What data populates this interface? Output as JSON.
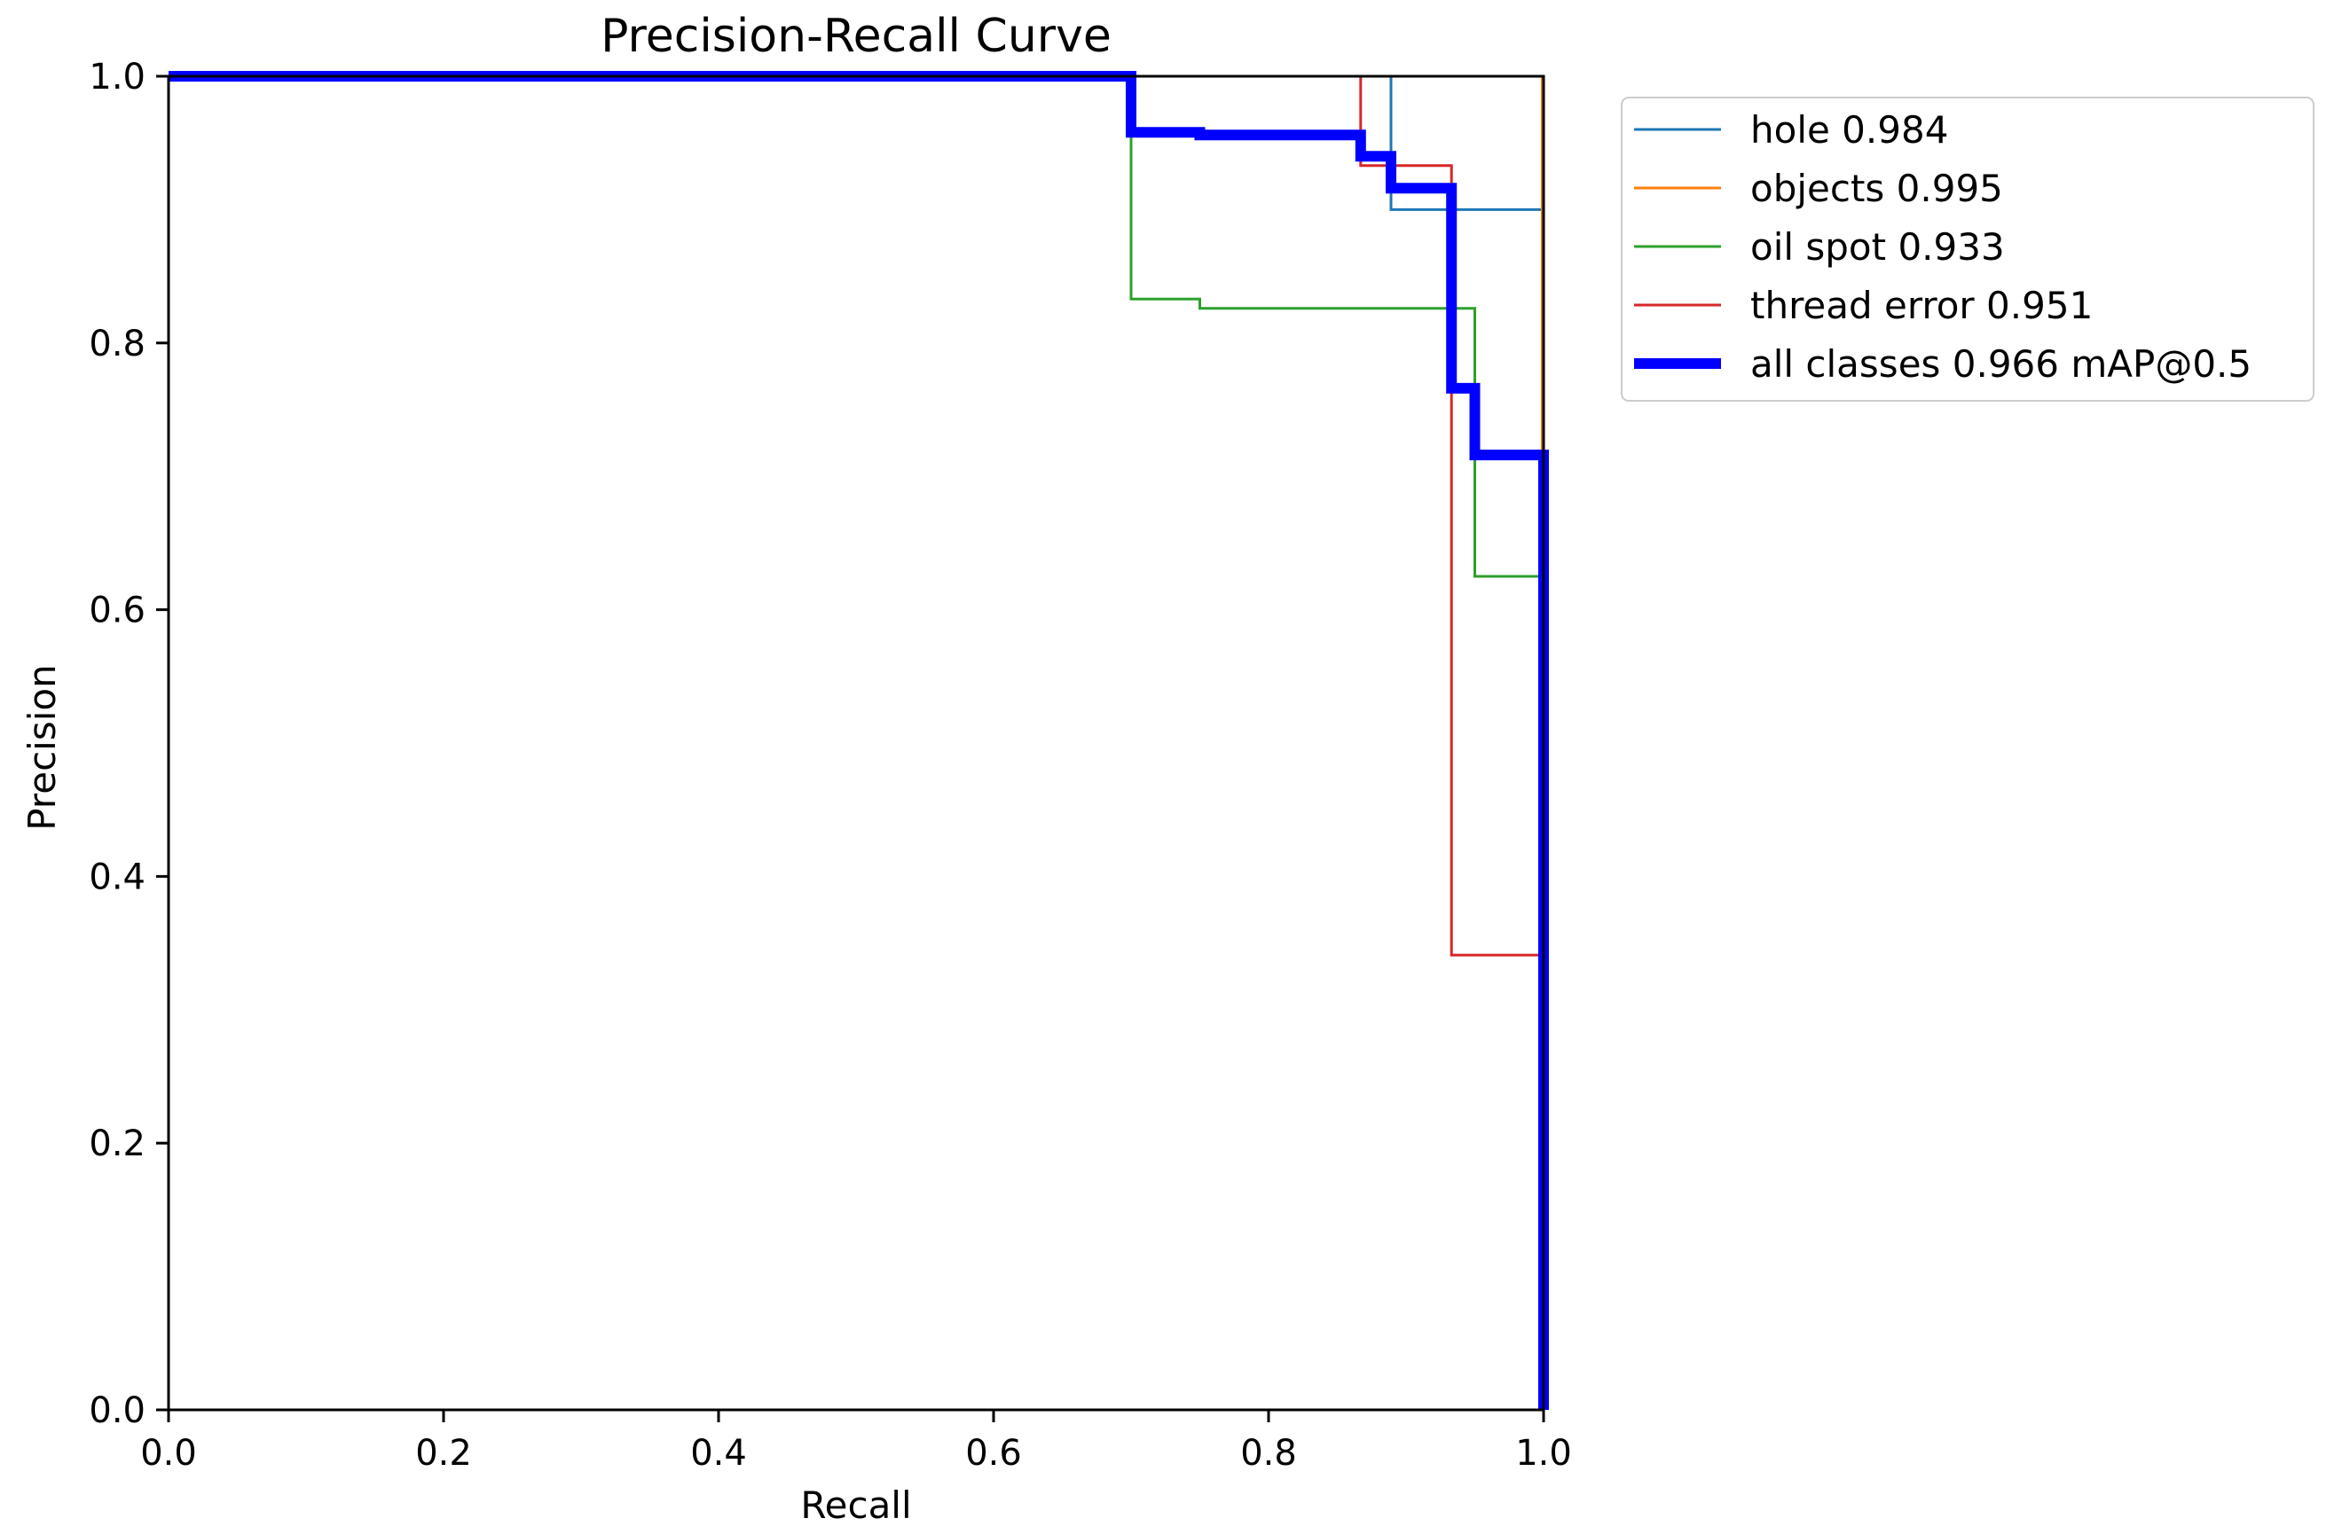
{
  "chart_data": {
    "type": "line",
    "title": "Precision-Recall Curve",
    "xlabel": "Recall",
    "ylabel": "Precision",
    "xlim": [
      0,
      1
    ],
    "ylim": [
      0,
      1
    ],
    "xticks": [
      "0.0",
      "0.2",
      "0.4",
      "0.6",
      "0.8",
      "1.0"
    ],
    "yticks": [
      "0.0",
      "0.2",
      "0.4",
      "0.6",
      "0.8",
      "1.0"
    ],
    "grid": false,
    "legend_position": "outside-top-right",
    "series": [
      {
        "name": "hole 0.984",
        "color": "#1f77b4",
        "width": "thin",
        "points": [
          [
            0,
            1
          ],
          [
            0.889,
            1
          ],
          [
            0.889,
            0.9
          ],
          [
            1.0,
            0.9
          ],
          [
            1.0,
            0
          ]
        ]
      },
      {
        "name": "objects 0.995",
        "color": "#ff7f0e",
        "width": "thin",
        "points": [
          [
            0,
            1
          ],
          [
            0.999,
            1
          ],
          [
            0.999,
            0
          ]
        ]
      },
      {
        "name": "oil spot 0.933",
        "color": "#2ca02c",
        "width": "thin",
        "points": [
          [
            0,
            1
          ],
          [
            0.7,
            1
          ],
          [
            0.7,
            0.833
          ],
          [
            0.75,
            0.833
          ],
          [
            0.75,
            0.826
          ],
          [
            0.95,
            0.826
          ],
          [
            0.95,
            0.625
          ],
          [
            1.0,
            0.625
          ],
          [
            1.0,
            0
          ]
        ]
      },
      {
        "name": "thread error 0.951",
        "color": "#d62728",
        "width": "thin",
        "points": [
          [
            0,
            1
          ],
          [
            0.867,
            1
          ],
          [
            0.867,
            0.933
          ],
          [
            0.933,
            0.933
          ],
          [
            0.933,
            0.341
          ],
          [
            1.0,
            0.341
          ],
          [
            1.0,
            0
          ]
        ]
      },
      {
        "name": "all classes 0.966 mAP@0.5",
        "color": "#0000ff",
        "width": "thick",
        "points": [
          [
            0,
            1
          ],
          [
            0.7,
            1
          ],
          [
            0.7,
            0.958
          ],
          [
            0.75,
            0.958
          ],
          [
            0.75,
            0.956
          ],
          [
            0.867,
            0.956
          ],
          [
            0.867,
            0.94
          ],
          [
            0.889,
            0.94
          ],
          [
            0.889,
            0.916
          ],
          [
            0.933,
            0.916
          ],
          [
            0.933,
            0.766
          ],
          [
            0.95,
            0.766
          ],
          [
            0.95,
            0.716
          ],
          [
            1.0,
            0.716
          ],
          [
            1.0,
            0
          ]
        ]
      }
    ]
  }
}
